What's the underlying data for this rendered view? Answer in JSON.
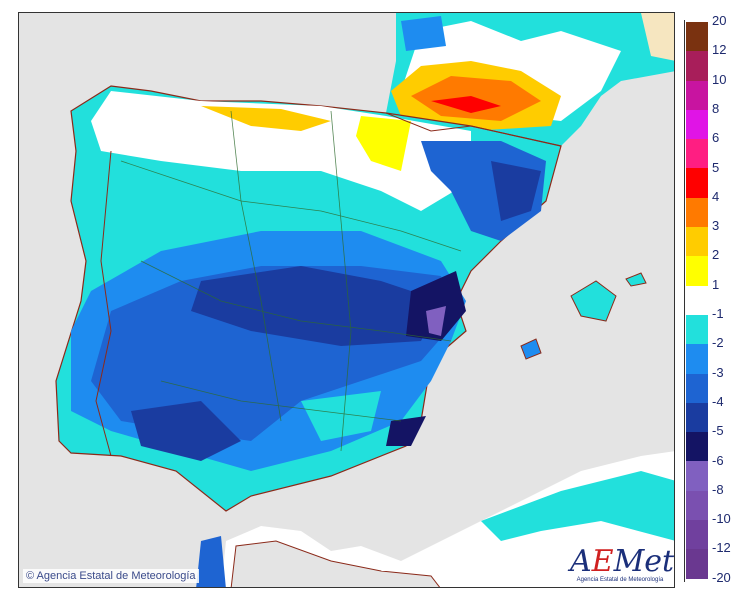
{
  "map": {
    "copyright": "© Agencia Estatal de Meteorología",
    "logo_text": "AEMet",
    "logo_subtitle": "Agencia Estatal de Meteorología"
  },
  "legend": {
    "labels": [
      "20",
      "12",
      "10",
      "8",
      "6",
      "5",
      "4",
      "3",
      "2",
      "1",
      "-1",
      "-2",
      "-3",
      "-4",
      "-5",
      "-6",
      "-8",
      "-10",
      "-12",
      "-20"
    ],
    "colors": [
      "#7a3210",
      "#a81e5a",
      "#c814a0",
      "#e014e6",
      "#ff1e82",
      "#ff0000",
      "#ff7a00",
      "#ffcc00",
      "#ffff00",
      "#ffffff",
      "#22e0dc",
      "#1e8cf0",
      "#1e64d2",
      "#1a3ca0",
      "#141464",
      "#8060c0",
      "#7a50b0",
      "#70409e",
      "#6a3890"
    ]
  }
}
